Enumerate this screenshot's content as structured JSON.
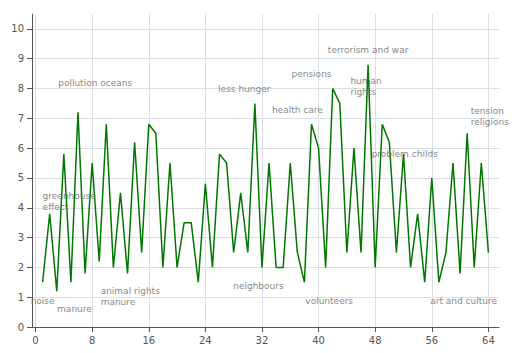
{
  "chart_data": {
    "type": "line",
    "x": [
      1,
      2,
      3,
      4,
      5,
      6,
      7,
      8,
      9,
      10,
      11,
      12,
      13,
      14,
      15,
      16,
      17,
      18,
      19,
      20,
      21,
      22,
      23,
      24,
      25,
      26,
      27,
      28,
      29,
      30,
      31,
      32,
      33,
      34,
      35,
      36,
      37,
      38,
      39,
      40,
      41,
      42,
      43,
      44,
      45,
      46,
      47,
      48,
      49,
      50,
      51,
      52,
      53,
      54,
      55,
      56,
      57,
      58,
      59,
      60,
      61,
      62,
      63,
      64
    ],
    "values": [
      1.5,
      3.8,
      1.2,
      5.8,
      1.5,
      7.2,
      1.8,
      5.5,
      2.2,
      6.8,
      2.0,
      4.5,
      1.8,
      6.2,
      2.5,
      6.8,
      6.5,
      2.0,
      5.5,
      2.0,
      3.5,
      3.5,
      1.5,
      4.8,
      2.0,
      5.8,
      5.5,
      2.5,
      4.5,
      2.5,
      7.5,
      2.0,
      5.5,
      2.0,
      2.0,
      5.5,
      2.5,
      1.5,
      6.8,
      6.0,
      2.0,
      8.0,
      7.5,
      2.5,
      6.0,
      2.5,
      8.8,
      2.0,
      6.8,
      6.2,
      2.5,
      5.8,
      2.0,
      3.8,
      1.5,
      5.0,
      1.5,
      2.5,
      5.5,
      1.8,
      6.5,
      2.0,
      5.5,
      2.5
    ],
    "color": "#007700",
    "xlim": [
      -0.5,
      65.5
    ],
    "xticks": [
      0,
      8,
      16,
      24,
      32,
      40,
      48,
      56,
      64
    ],
    "ylim": [
      0,
      10.5
    ],
    "yticks": [
      0,
      1,
      2,
      3,
      4,
      5,
      6,
      7,
      8,
      9,
      10
    ],
    "grid": true,
    "annotations": [
      {
        "text": "noise",
        "x": 1,
        "y": 1.05
      },
      {
        "text": "greenhouse\neffect",
        "x": 1,
        "y": 4.2
      },
      {
        "text": "manure",
        "x": 5.5,
        "y": 0.8
      },
      {
        "text": "pollution oceans",
        "x": 3.2,
        "y": 8.2
      },
      {
        "text": "animal rights\nmanure",
        "x": 9.2,
        "y": 1.4
      },
      {
        "text": "less hunger",
        "x": 29.5,
        "y": 7.8
      },
      {
        "text": "neighbours",
        "x": 31.5,
        "y": 1.55
      },
      {
        "text": "health care",
        "x": 37,
        "y": 7.1
      },
      {
        "text": "pensions",
        "x": 39,
        "y": 8.3
      },
      {
        "text": "volunteers",
        "x": 41.5,
        "y": 1.05
      },
      {
        "text": "human\nrights",
        "x": 44.5,
        "y": 7.7
      },
      {
        "text": "terrorism and war",
        "x": 47,
        "y": 9.1
      },
      {
        "text": "problem childs",
        "x": 47.5,
        "y": 5.8
      },
      {
        "text": "art and culture",
        "x": 60.5,
        "y": 1.05
      },
      {
        "text": "tension\nreligions",
        "x": 61.5,
        "y": 6.7
      }
    ]
  }
}
